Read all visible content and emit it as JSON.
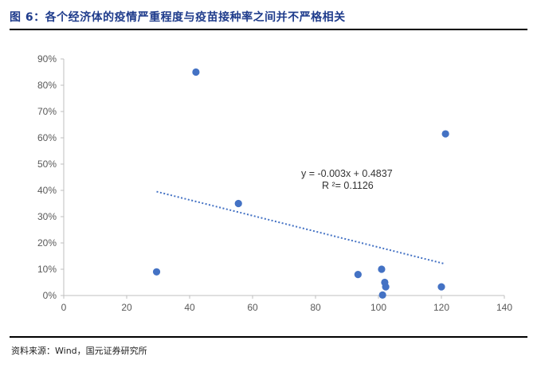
{
  "header": {
    "title": "图 6：各个经济体的疫情严重程度与疫苗接种率之间并不严格相关"
  },
  "footer": {
    "source": "资料来源：Wind，国元证券研究所"
  },
  "chart_data": {
    "type": "scatter",
    "title": "",
    "xlabel": "",
    "ylabel": "",
    "xlim": [
      0,
      140
    ],
    "ylim": [
      0,
      0.9
    ],
    "x_ticks": [
      "0",
      "20",
      "40",
      "60",
      "80",
      "100",
      "120",
      "140"
    ],
    "y_ticks": [
      "0%",
      "10%",
      "20%",
      "30%",
      "40%",
      "50%",
      "60%",
      "70%",
      "80%",
      "90%"
    ],
    "points": [
      {
        "x": 29.5,
        "y": 0.09
      },
      {
        "x": 42,
        "y": 0.85
      },
      {
        "x": 55.5,
        "y": 0.35
      },
      {
        "x": 93.5,
        "y": 0.08
      },
      {
        "x": 101,
        "y": 0.1
      },
      {
        "x": 102,
        "y": 0.05
      },
      {
        "x": 102.3,
        "y": 0.033
      },
      {
        "x": 101.3,
        "y": 0.002
      },
      {
        "x": 120,
        "y": 0.033
      },
      {
        "x": 121.3,
        "y": 0.615
      }
    ],
    "trendline": {
      "slope": -0.003,
      "intercept": 0.4837,
      "x_start": 29.5,
      "x_end": 121
    },
    "equation": "y = -0.003x + 0.4837",
    "r_squared": "R ²= 0.1126",
    "grid": false,
    "colors": {
      "point": "#4472c4",
      "trendline": "#4472c4",
      "axis": "#bfbfbf"
    }
  }
}
